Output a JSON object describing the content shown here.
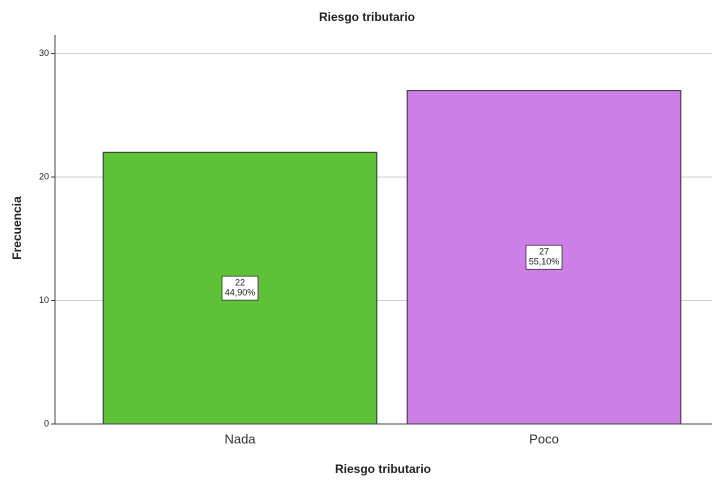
{
  "chart_data": {
    "type": "bar",
    "title": "Riesgo tributario",
    "x_label": "Riesgo tributario",
    "y_label": "Frecuencia",
    "categories": [
      "Nada",
      "Poco"
    ],
    "values": [
      22,
      27
    ],
    "percents": [
      44.9,
      55.1
    ],
    "percent_labels": [
      "44,90%",
      "55,10%"
    ],
    "colors": [
      "#5dc236",
      "#cc7fe6"
    ],
    "ylim": [
      0,
      31.5
    ],
    "yticks": [
      0,
      10,
      20,
      30
    ],
    "grid": true
  }
}
